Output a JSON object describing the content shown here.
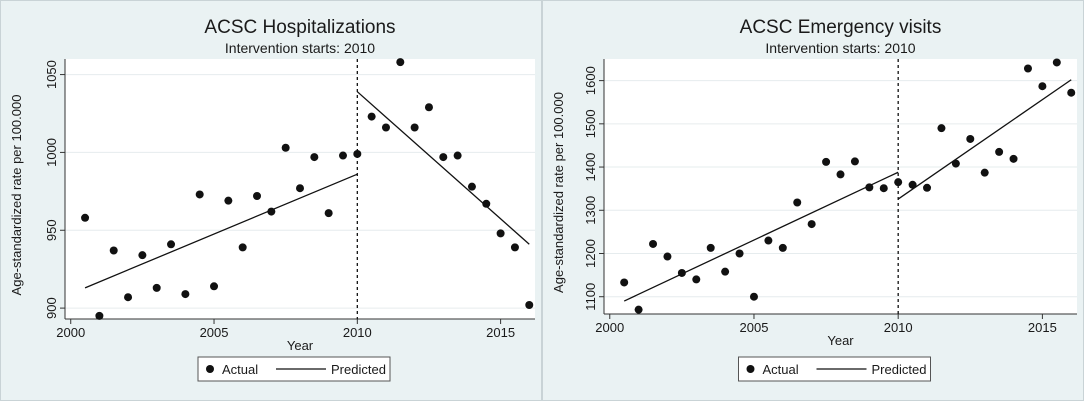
{
  "chart_data": [
    {
      "type": "scatter",
      "title": "ACSC Hospitalizations",
      "subtitle": "Intervention starts: 2010",
      "xlabel": "Year",
      "ylabel": "Age-standardized rate per 100.000",
      "xlim": [
        1999.8,
        2016.2
      ],
      "ylim": [
        893,
        1060
      ],
      "xticks": [
        2000,
        2005,
        2010,
        2015
      ],
      "yticks": [
        900,
        950,
        1000,
        1050
      ],
      "intervention_x": 2010,
      "legend": [
        "Actual",
        "Predicted"
      ],
      "series": [
        {
          "name": "Actual",
          "x": [
            2000.5,
            2001.0,
            2001.5,
            2002.0,
            2002.5,
            2003.0,
            2003.5,
            2004.0,
            2004.5,
            2005.0,
            2005.5,
            2006.0,
            2006.5,
            2007.0,
            2007.5,
            2008.0,
            2008.5,
            2009.0,
            2009.5,
            2010.0,
            2010.5,
            2011.0,
            2011.5,
            2012.0,
            2012.5,
            2013.0,
            2013.5,
            2014.0,
            2014.5,
            2015.0,
            2015.5,
            2016.0
          ],
          "y": [
            958,
            895,
            937,
            907,
            934,
            913,
            941,
            909,
            973,
            914,
            969,
            939,
            972,
            962,
            1003,
            977,
            997,
            961,
            998,
            999,
            1023,
            1016,
            1058,
            1016,
            1029,
            997,
            998,
            978,
            967,
            948,
            939,
            902
          ]
        },
        {
          "name": "Predicted (pre-intervention)",
          "x": [
            2000.5,
            2010.0
          ],
          "y": [
            913,
            986
          ]
        },
        {
          "name": "Predicted (post-intervention)",
          "x": [
            2010.0,
            2016.0
          ],
          "y": [
            1039,
            941
          ]
        }
      ]
    },
    {
      "type": "scatter",
      "title": "ACSC Emergency visits",
      "subtitle": "Intervention starts: 2010",
      "xlabel": "Year",
      "ylabel": "Age-standardized rate per 100.000",
      "xlim": [
        1999.8,
        2016.2
      ],
      "ylim": [
        1060,
        1650
      ],
      "xticks": [
        2000,
        2005,
        2010,
        2015
      ],
      "yticks": [
        1100,
        1200,
        1300,
        1400,
        1500,
        1600
      ],
      "intervention_x": 2010,
      "legend": [
        "Actual",
        "Predicted"
      ],
      "series": [
        {
          "name": "Actual",
          "x": [
            2000.5,
            2001.0,
            2001.5,
            2002.0,
            2002.5,
            2003.0,
            2003.5,
            2004.0,
            2004.5,
            2005.0,
            2005.5,
            2006.0,
            2006.5,
            2007.0,
            2007.5,
            2008.0,
            2008.5,
            2009.0,
            2009.5,
            2010.0,
            2010.5,
            2011.0,
            2011.5,
            2012.0,
            2012.5,
            2013.0,
            2013.5,
            2014.0,
            2014.5,
            2015.0,
            2015.5,
            2016.0
          ],
          "y": [
            1133,
            1070,
            1222,
            1193,
            1155,
            1140,
            1213,
            1158,
            1200,
            1100,
            1230,
            1213,
            1318,
            1268,
            1412,
            1383,
            1413,
            1353,
            1351,
            1365,
            1359,
            1352,
            1490,
            1408,
            1465,
            1387,
            1435,
            1419,
            1628,
            1587,
            1642,
            1572
          ]
        },
        {
          "name": "Predicted (pre-intervention)",
          "x": [
            2000.5,
            2010.0
          ],
          "y": [
            1090,
            1388
          ]
        },
        {
          "name": "Predicted (post-intervention)",
          "x": [
            2010.0,
            2016.0
          ],
          "y": [
            1326,
            1602
          ]
        }
      ]
    }
  ]
}
